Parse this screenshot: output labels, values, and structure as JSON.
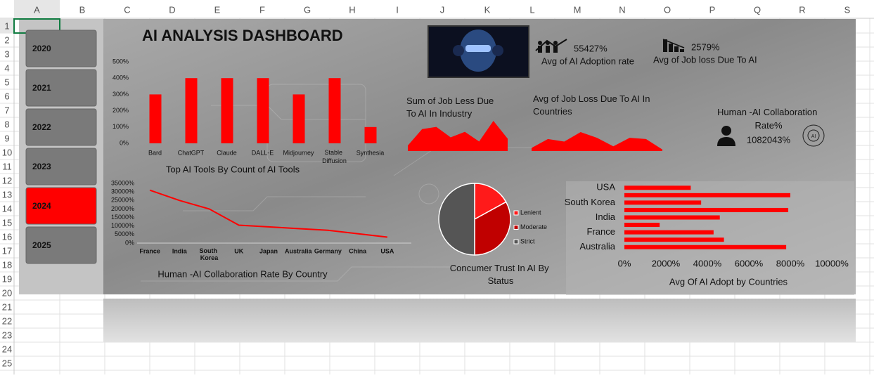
{
  "spreadsheet": {
    "columns": [
      "A",
      "B",
      "C",
      "D",
      "E",
      "F",
      "G",
      "H",
      "I",
      "J",
      "K",
      "L",
      "M",
      "N",
      "O",
      "P",
      "Q",
      "R",
      "S"
    ],
    "rows": [
      1,
      2,
      3,
      4,
      5,
      6,
      7,
      8,
      9,
      10,
      11,
      12,
      13,
      14,
      15,
      16,
      17,
      18,
      19,
      20,
      21,
      22,
      23,
      24,
      25
    ]
  },
  "slicer": {
    "items": [
      2020,
      2021,
      2022,
      2023,
      2024,
      2025
    ],
    "selected": 2024,
    "selected_color": "#ff0000",
    "color": "#7a7a7a"
  },
  "title": "AI ANALYSIS DASHBOARD",
  "kpis": {
    "adoption": {
      "value": "55427%",
      "label": "Avg of AI Adoption rate"
    },
    "job_loss": {
      "value": "2579%",
      "label": "Avg of Job loss Due To AI"
    },
    "collaboration": {
      "label": "Human -AI Collaboration Rate%",
      "value": "1082043%"
    }
  },
  "chart_data": [
    {
      "type": "bar",
      "title": "Top AI Tools By Count of AI Tools",
      "categories": [
        "Bard",
        "ChatGPT",
        "Claude",
        "DALL-E",
        "Midjourney",
        "Stable Diffusion",
        "Synthesia"
      ],
      "values": [
        300,
        400,
        400,
        400,
        300,
        400,
        100
      ],
      "color": "#ff0000",
      "ylim": [
        0,
        500
      ],
      "yticks": [
        {
          "value": 0,
          "label": "0%"
        },
        {
          "value": 100,
          "label": "100%"
        },
        {
          "value": 200,
          "label": "200%"
        },
        {
          "value": 300,
          "label": "300%"
        },
        {
          "value": 400,
          "label": "400%"
        },
        {
          "value": 500,
          "label": "500%"
        }
      ]
    },
    {
      "type": "area",
      "title": "Sum of Job Less Due To AI In Industry",
      "values": [
        20,
        80,
        88,
        50,
        70,
        35,
        110,
        45
      ],
      "color": "#ff0000"
    },
    {
      "type": "area",
      "title": "Avg of Job Loss Due To AI In Countries",
      "values": [
        10,
        38,
        30,
        60,
        42,
        15,
        42,
        38,
        5
      ],
      "color": "#ff0000"
    },
    {
      "type": "line",
      "title": "Human -AI Collaboration Rate By Country",
      "categories": [
        "France",
        "India",
        "South Korea",
        "UK",
        "Japan",
        "Australia",
        "Germany",
        "China",
        "USA"
      ],
      "values": [
        31000,
        25000,
        20000,
        10500,
        9500,
        8500,
        7500,
        5500,
        3500
      ],
      "color": "#ff0000",
      "ylim": [
        0,
        35000
      ],
      "yticks": [
        {
          "value": 0,
          "label": "0%"
        },
        {
          "value": 5000,
          "label": "5000%"
        },
        {
          "value": 10000,
          "label": "10000%"
        },
        {
          "value": 15000,
          "label": "15000%"
        },
        {
          "value": 20000,
          "label": "20000%"
        },
        {
          "value": 25000,
          "label": "25000%"
        },
        {
          "value": 30000,
          "label": "30000%"
        },
        {
          "value": 35000,
          "label": "35000%"
        }
      ]
    },
    {
      "type": "pie",
      "title": "Concumer Trust In AI By Status",
      "categories": [
        "Lenient",
        "Moderate",
        "Strict"
      ],
      "values": [
        17,
        33,
        50
      ],
      "colors": [
        "#ff1a1a",
        "#c00000",
        "#555555"
      ]
    },
    {
      "type": "hbar",
      "title": "Avg Of AI Adopt by Countries",
      "categories": [
        "USA",
        null,
        "South Korea",
        null,
        "India",
        null,
        "France",
        null,
        "Australia"
      ],
      "values": [
        3200,
        8000,
        3700,
        7900,
        4600,
        1700,
        4300,
        4800,
        7800
      ],
      "color": "#ff0000",
      "xlim": [
        0,
        10000
      ],
      "xticks": [
        {
          "value": 0,
          "label": "0%"
        },
        {
          "value": 2000,
          "label": "2000%"
        },
        {
          "value": 4000,
          "label": "4000%"
        },
        {
          "value": 6000,
          "label": "6000%"
        },
        {
          "value": 8000,
          "label": "8000%"
        },
        {
          "value": 10000,
          "label": "10000%"
        }
      ]
    }
  ]
}
